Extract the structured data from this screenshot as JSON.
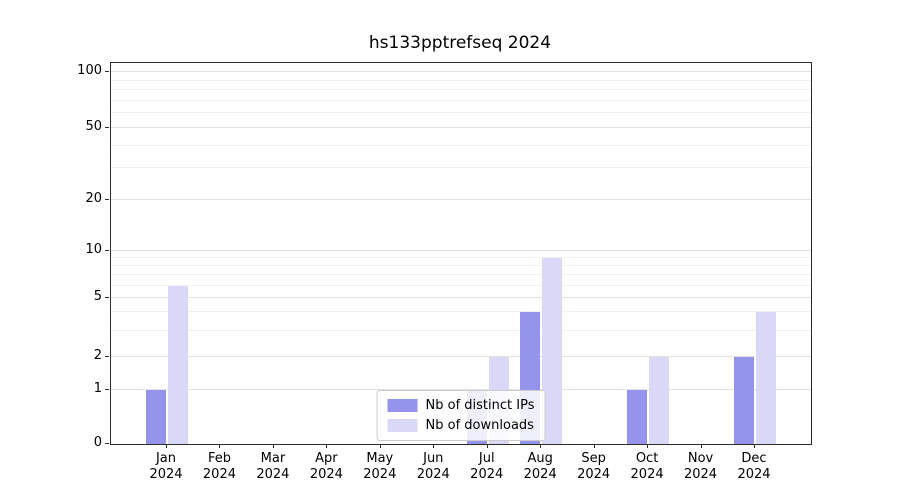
{
  "title": "hs133pptrefseq 2024",
  "chart_data": {
    "type": "bar",
    "title": "hs133pptrefseq 2024",
    "categories": [
      "Jan 2024",
      "Feb 2024",
      "Mar 2024",
      "Apr 2024",
      "May 2024",
      "Jun 2024",
      "Jul 2024",
      "Aug 2024",
      "Sep 2024",
      "Oct 2024",
      "Nov 2024",
      "Dec 2024"
    ],
    "series": [
      {
        "name": "Nb of distinct IPs",
        "color": "#9494ec",
        "values": [
          1,
          0,
          0,
          0,
          0,
          0,
          1,
          4,
          0,
          1,
          0,
          2
        ]
      },
      {
        "name": "Nb of downloads",
        "color": "#d9d9f7",
        "values": [
          6,
          0,
          0,
          0,
          0,
          0,
          2,
          9,
          0,
          2,
          0,
          4
        ]
      }
    ],
    "xlabel": "",
    "ylabel": "",
    "y_scale": "symlog",
    "y_ticks": [
      0,
      1,
      2,
      5,
      10,
      20,
      50,
      100
    ],
    "y_minor_gridlines": [
      3,
      4,
      6,
      7,
      8,
      9,
      30,
      40,
      60,
      70,
      80,
      90
    ],
    "ylim": [
      0,
      110
    ],
    "grid": "on",
    "legend_position": "lower center"
  },
  "legend": {
    "items": [
      {
        "label": "Nb of distinct IPs"
      },
      {
        "label": "Nb of downloads"
      }
    ]
  }
}
